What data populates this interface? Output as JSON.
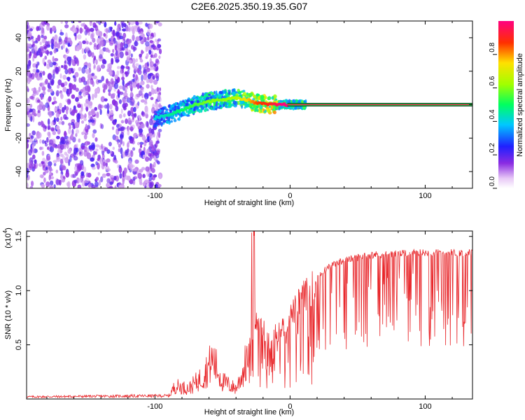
{
  "title": "C2E6.2025.350.19.35.G07",
  "chart_data": [
    {
      "type": "heatmap",
      "title": "C2E6.2025.350.19.35.G07",
      "xlabel": "Height of straight line (km)",
      "ylabel": "Frequency (Hz)",
      "xlim": [
        -195,
        135
      ],
      "ylim": [
        -50,
        50
      ],
      "x_ticks": [
        -100,
        0,
        100
      ],
      "x_tick_labels": [
        "-100",
        "0",
        "100"
      ],
      "y_ticks": [
        -40,
        -20,
        0,
        20,
        40
      ],
      "y_tick_labels": [
        "-40",
        "-20",
        "0",
        "20",
        "40"
      ],
      "colorbar": {
        "label": "Normalized spectral amplitude",
        "range": [
          0,
          1
        ],
        "ticks": [
          0.0,
          0.2,
          0.4,
          0.6,
          0.8
        ],
        "tick_labels": [
          "0.0",
          "0.2",
          "0.4",
          "0.6",
          "0.8"
        ]
      },
      "noise_region": {
        "x_range": [
          -195,
          -100
        ],
        "amplitude": 0.2
      },
      "trace": {
        "description": "tracked carrier frequency vs height",
        "x": [
          -100,
          -90,
          -80,
          -70,
          -60,
          -50,
          -40,
          -32,
          -25,
          -15,
          -5,
          0,
          20,
          60,
          100,
          135
        ],
        "y": [
          -8,
          -6,
          -3,
          0,
          2,
          3,
          4,
          3,
          1,
          0,
          0,
          0,
          0,
          0,
          0,
          0
        ],
        "amplitude": [
          0.4,
          0.45,
          0.5,
          0.55,
          0.6,
          0.6,
          0.65,
          0.75,
          0.85,
          0.9,
          1.0,
          1.0,
          1.0,
          1.0,
          1.0,
          1.0
        ]
      }
    },
    {
      "type": "line",
      "xlabel": "Height of straight line (km)",
      "ylabel": "SNR (10 * v/v)",
      "multiplier": "(x10",
      "multiplier_exp": "4",
      "multiplier_close": ")",
      "xlim": [
        -195,
        135
      ],
      "ylim": [
        0,
        1.55
      ],
      "x_ticks": [
        -100,
        0,
        100
      ],
      "x_tick_labels": [
        "-100",
        "0",
        "100"
      ],
      "y_ticks": [
        0.5,
        1.0,
        1.5
      ],
      "y_tick_labels": [
        "0.5",
        "1.0",
        "1.5"
      ],
      "color": "#e8262a",
      "series": [
        {
          "name": "SNR",
          "x": [
            -195,
            -90,
            -85,
            -75,
            -65,
            -60,
            -57,
            -50,
            -40,
            -35,
            -30,
            -25,
            -20,
            -15,
            -10,
            -5,
            0,
            5,
            10,
            15,
            20,
            30,
            40,
            60,
            80,
            100,
            120,
            135
          ],
          "y": [
            0.02,
            0.03,
            0.15,
            0.12,
            0.25,
            0.38,
            0.45,
            0.2,
            0.12,
            0.3,
            0.55,
            0.75,
            0.7,
            0.55,
            0.65,
            0.7,
            0.8,
            0.9,
            1.0,
            1.05,
            1.15,
            1.25,
            1.3,
            1.35,
            1.36,
            1.37,
            1.37,
            1.37
          ]
        }
      ]
    }
  ]
}
